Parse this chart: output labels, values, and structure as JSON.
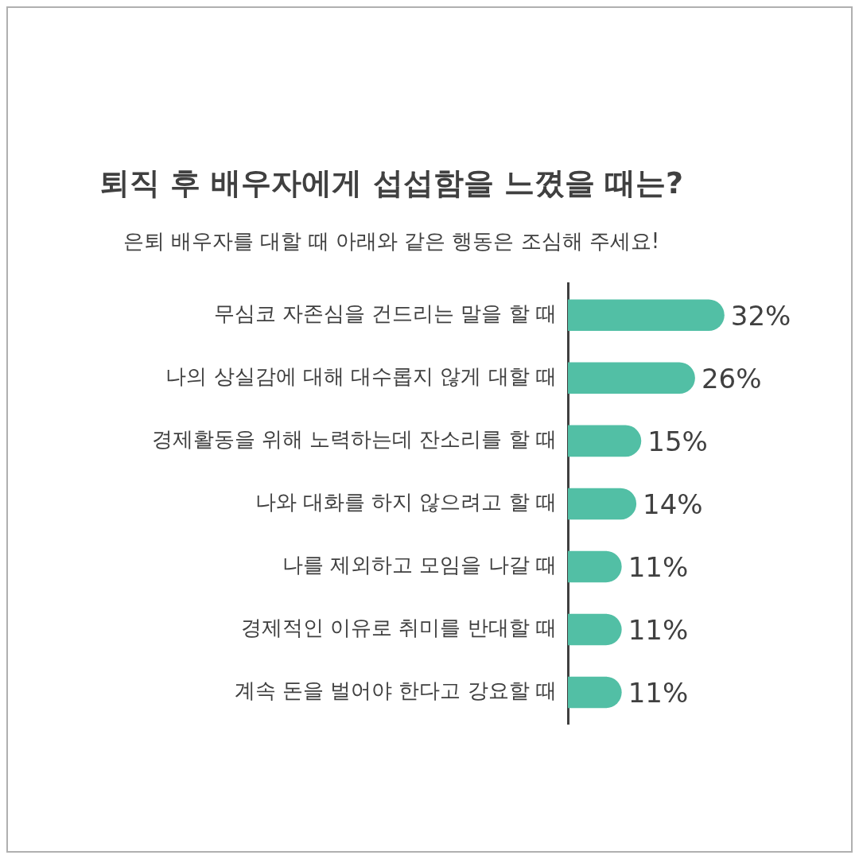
{
  "chart_data": {
    "type": "bar",
    "orientation": "horizontal",
    "title": "퇴직 후 배우자에게 섭섭함을 느꼈을 때는?",
    "subtitle": "은퇴 배우자를 대할 때 아래와 같은 행동은 조심해 주세요!",
    "categories": [
      "무심코 자존심을 건드리는 말을 할 때",
      "나의 상실감에 대해 대수롭지 않게 대할 때",
      "경제활동을 위해 노력하는데 잔소리를 할 때",
      "나와 대화를 하지 않으려고 할 때",
      "나를 제외하고 모임을 나갈 때",
      "경제적인 이유로 취미를 반대할 때",
      "계속 돈을 벌어야 한다고 강요할 때"
    ],
    "values": [
      32,
      26,
      15,
      14,
      11,
      11,
      11
    ],
    "value_labels": [
      "32%",
      "26%",
      "15%",
      "14%",
      "11%",
      "11%",
      "11%"
    ],
    "color": "#52bfa5",
    "tick_labels": "y",
    "grid": false,
    "legend": false
  }
}
